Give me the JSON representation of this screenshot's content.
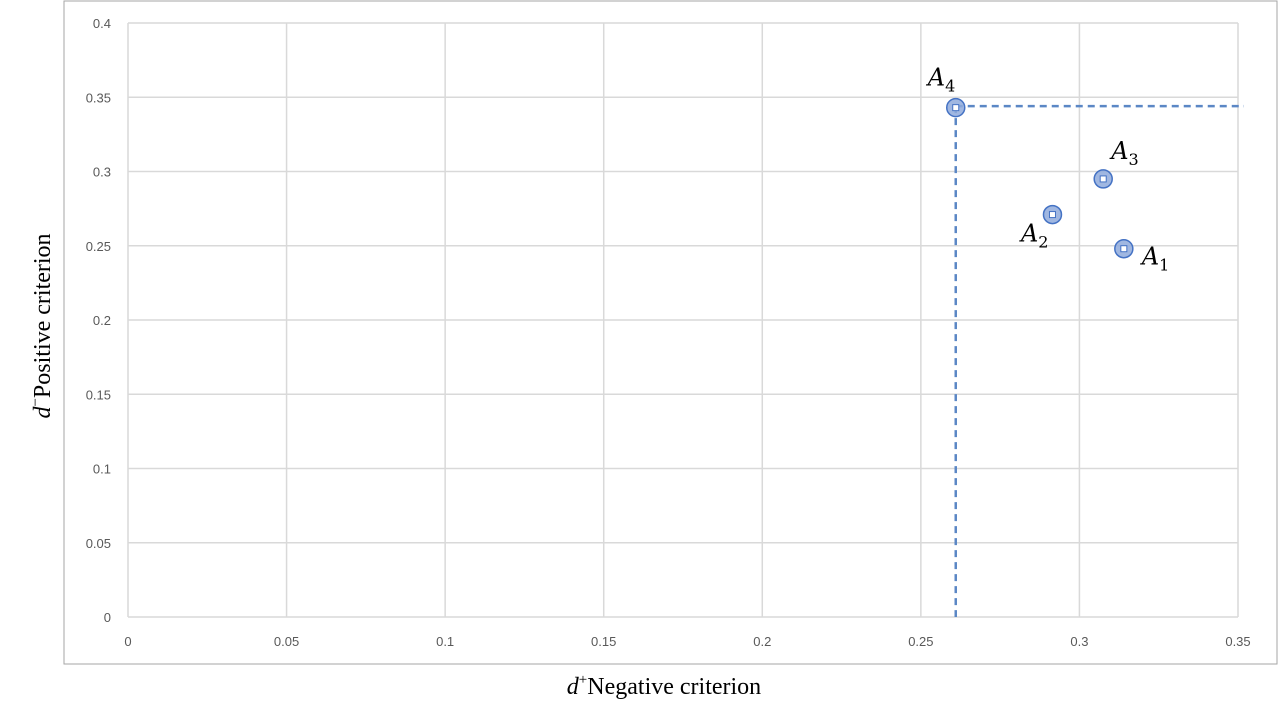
{
  "chart_data": {
    "type": "scatter",
    "title": "",
    "xlabel": {
      "prefix": "d",
      "superscript": "+",
      "text": "Negative  criterion"
    },
    "ylabel": {
      "prefix": "d",
      "superscript": "−",
      "text": "Positive  criterion"
    },
    "xlim": [
      0,
      0.35
    ],
    "ylim": [
      0,
      0.4
    ],
    "x_ticks": [
      0,
      0.05,
      0.1,
      0.15,
      0.2,
      0.25,
      0.3,
      0.35
    ],
    "x_tick_labels": [
      "0",
      "0.05",
      "0.1",
      "0.15",
      "0.2",
      "0.25",
      "0.3",
      "0.35"
    ],
    "y_ticks": [
      0,
      0.05,
      0.1,
      0.15,
      0.2,
      0.25,
      0.3,
      0.35,
      0.4
    ],
    "y_tick_labels": [
      "0",
      "0.05",
      "0.1",
      "0.15",
      "0.2",
      "0.25",
      "0.3",
      "0.35",
      "0.4"
    ],
    "grid": true,
    "points": [
      {
        "label": "A",
        "sub": "1",
        "x": 0.314,
        "y": 0.248
      },
      {
        "label": "A",
        "sub": "2",
        "x": 0.2915,
        "y": 0.271
      },
      {
        "label": "A",
        "sub": "3",
        "x": 0.3075,
        "y": 0.295
      },
      {
        "label": "A",
        "sub": "4",
        "x": 0.261,
        "y": 0.343
      }
    ],
    "reference_lines": {
      "x": 0.261,
      "y": 0.344,
      "style": "dashed"
    },
    "colors": {
      "marker_fill": "#8faadc",
      "marker_stroke": "#4472c4",
      "reference_line": "#5b87c5",
      "grid": "#d9d9d9",
      "frame": "#a6a6a6"
    }
  }
}
